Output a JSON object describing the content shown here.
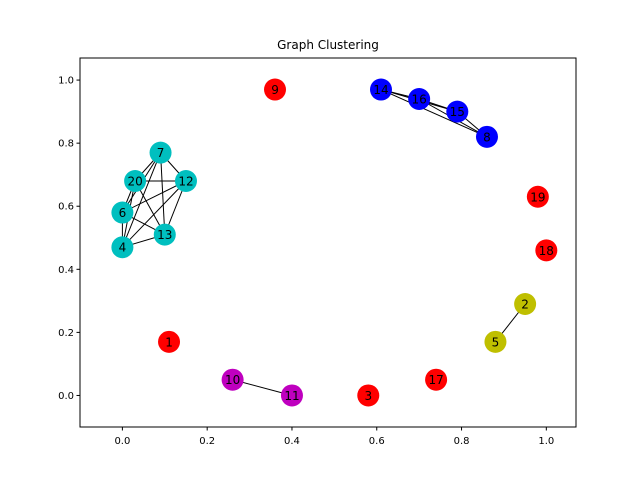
{
  "chart_data": {
    "type": "scatter",
    "title": "Graph Clustering",
    "xlabel": "",
    "ylabel": "",
    "xlim": [
      -0.1,
      1.07
    ],
    "ylim": [
      -0.1,
      1.07
    ],
    "xticks": [
      "0.0",
      "0.2",
      "0.4",
      "0.6",
      "0.8",
      "1.0"
    ],
    "yticks": [
      "0.0",
      "0.2",
      "0.4",
      "0.6",
      "0.8",
      "1.0"
    ],
    "grid": false,
    "colors": {
      "red": "#ff0000",
      "blue": "#0000ff",
      "cyan": "#00bfbf",
      "olive": "#bfbf00",
      "magenta": "#bf00bf",
      "edge": "#000000"
    },
    "nodes": [
      {
        "id": "1",
        "x": 0.11,
        "y": 0.17,
        "color": "red"
      },
      {
        "id": "2",
        "x": 0.95,
        "y": 0.29,
        "color": "olive"
      },
      {
        "id": "3",
        "x": 0.58,
        "y": 0.0,
        "color": "red"
      },
      {
        "id": "4",
        "x": 0.0,
        "y": 0.47,
        "color": "cyan"
      },
      {
        "id": "5",
        "x": 0.88,
        "y": 0.17,
        "color": "olive"
      },
      {
        "id": "6",
        "x": 0.0,
        "y": 0.58,
        "color": "cyan"
      },
      {
        "id": "7",
        "x": 0.09,
        "y": 0.77,
        "color": "cyan"
      },
      {
        "id": "8",
        "x": 0.86,
        "y": 0.82,
        "color": "blue"
      },
      {
        "id": "9",
        "x": 0.36,
        "y": 0.97,
        "color": "red"
      },
      {
        "id": "10",
        "x": 0.26,
        "y": 0.05,
        "color": "magenta"
      },
      {
        "id": "11",
        "x": 0.4,
        "y": 0.0,
        "color": "magenta"
      },
      {
        "id": "12",
        "x": 0.15,
        "y": 0.68,
        "color": "cyan"
      },
      {
        "id": "13",
        "x": 0.1,
        "y": 0.51,
        "color": "cyan"
      },
      {
        "id": "14",
        "x": 0.61,
        "y": 0.97,
        "color": "blue"
      },
      {
        "id": "15",
        "x": 0.79,
        "y": 0.9,
        "color": "blue"
      },
      {
        "id": "16",
        "x": 0.7,
        "y": 0.94,
        "color": "blue"
      },
      {
        "id": "17",
        "x": 0.74,
        "y": 0.05,
        "color": "red"
      },
      {
        "id": "18",
        "x": 1.0,
        "y": 0.46,
        "color": "red"
      },
      {
        "id": "19",
        "x": 0.98,
        "y": 0.63,
        "color": "red"
      },
      {
        "id": "20",
        "x": 0.03,
        "y": 0.68,
        "color": "cyan"
      }
    ],
    "edges": [
      [
        "2",
        "5"
      ],
      [
        "10",
        "11"
      ],
      [
        "14",
        "16"
      ],
      [
        "14",
        "15"
      ],
      [
        "14",
        "8"
      ],
      [
        "16",
        "15"
      ],
      [
        "16",
        "8"
      ],
      [
        "15",
        "8"
      ],
      [
        "7",
        "20"
      ],
      [
        "7",
        "12"
      ],
      [
        "7",
        "6"
      ],
      [
        "7",
        "4"
      ],
      [
        "7",
        "13"
      ],
      [
        "20",
        "12"
      ],
      [
        "20",
        "6"
      ],
      [
        "20",
        "4"
      ],
      [
        "20",
        "13"
      ],
      [
        "12",
        "6"
      ],
      [
        "12",
        "4"
      ],
      [
        "12",
        "13"
      ],
      [
        "6",
        "4"
      ],
      [
        "6",
        "13"
      ],
      [
        "4",
        "13"
      ]
    ]
  }
}
